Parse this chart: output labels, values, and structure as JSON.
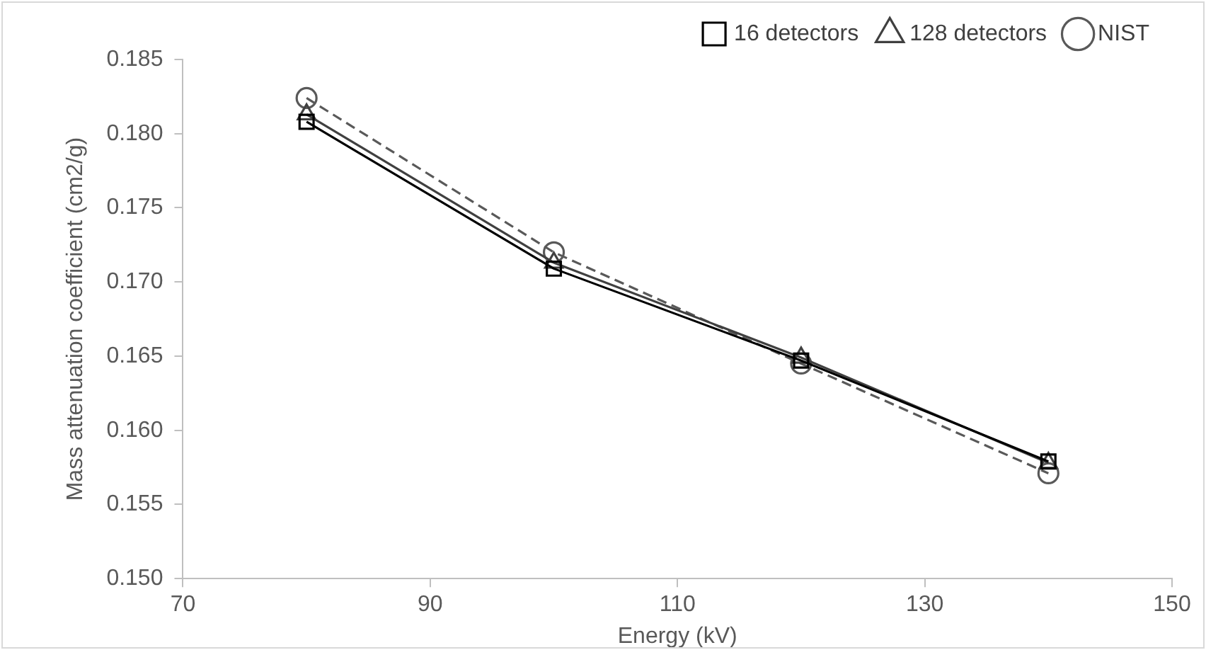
{
  "chart_data": {
    "type": "line",
    "xlabel": "Energy (kV)",
    "ylabel": "Mass attenuation coefficient (cm2/g)",
    "x": [
      80,
      100,
      120,
      140
    ],
    "series": [
      {
        "name": "16 detectors",
        "color": "#000000",
        "marker": "square",
        "line_style": "solid",
        "values": [
          0.1808,
          0.1709,
          0.1647,
          0.1579
        ]
      },
      {
        "name": "128 detectors",
        "color": "#404040",
        "marker": "triangle",
        "line_style": "solid",
        "values": [
          0.1813,
          0.1713,
          0.1649,
          0.1578
        ]
      },
      {
        "name": "NIST",
        "color": "#595959",
        "marker": "circle",
        "line_style": "dashed",
        "values": [
          0.1824,
          0.172,
          0.1645,
          0.1571
        ]
      }
    ],
    "xlim": [
      70,
      150
    ],
    "xticks": [
      70,
      90,
      110,
      130,
      150
    ],
    "ylim": [
      0.15,
      0.185
    ],
    "yticks": [
      {
        "value": 0.15,
        "label": "0.150"
      },
      0.155,
      {
        "value": 0.16,
        "label": "0.160"
      },
      0.165,
      {
        "value": 0.17,
        "label": "0.170"
      },
      0.175,
      {
        "value": 0.18,
        "label": "0.180"
      },
      0.185
    ],
    "grid": false,
    "legend": "top right"
  }
}
